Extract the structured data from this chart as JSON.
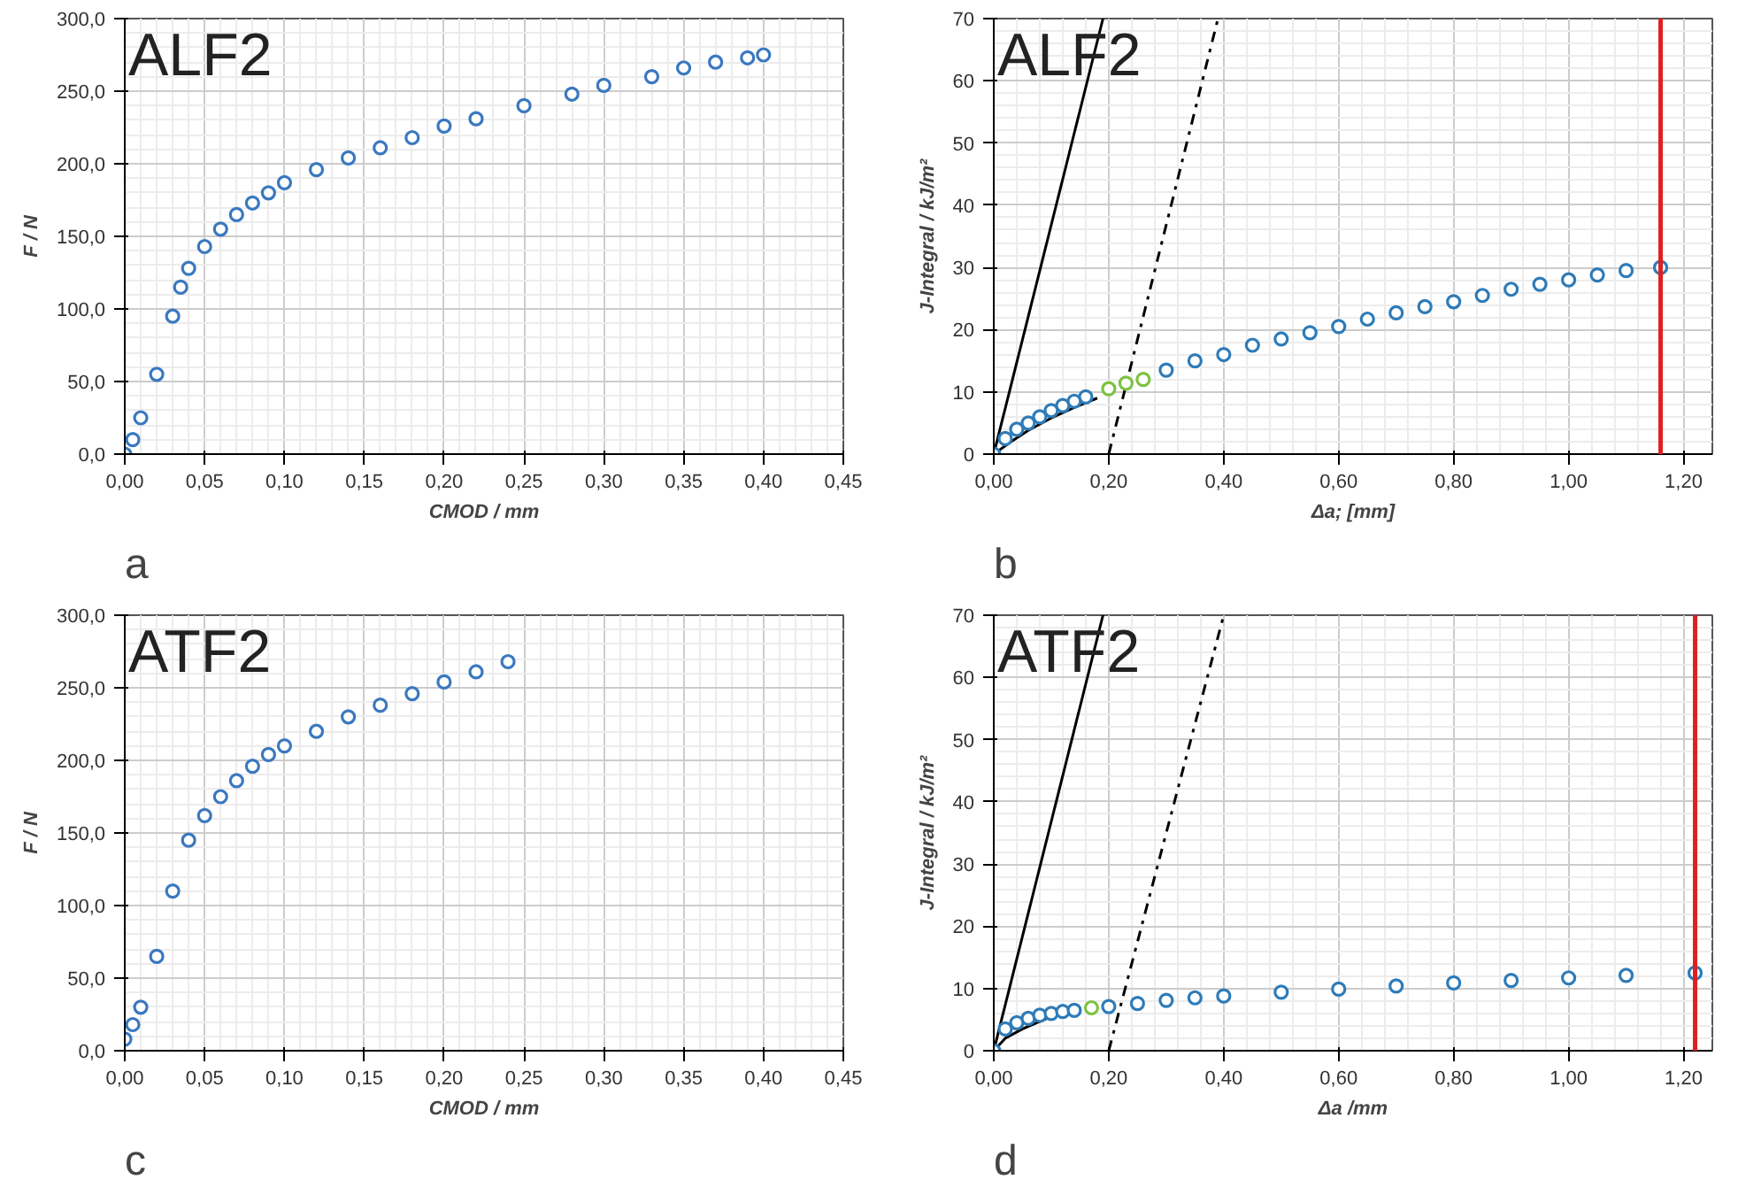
{
  "chart_data": [
    {
      "type": "scatter",
      "title": "ALF2",
      "xlabel": "CMOD / mm",
      "ylabel": "F / N",
      "annotations": [
        "a"
      ],
      "grid": true,
      "marker": "circle",
      "xlim": [
        0,
        0.45
      ],
      "ylim": [
        0,
        300
      ],
      "xticks": [
        {
          "value": 0,
          "label": "0,00"
        },
        {
          "value": 0.05,
          "label": "0,05"
        },
        {
          "value": 0.1,
          "label": "0,10"
        },
        {
          "value": 0.15,
          "label": "0,15"
        },
        {
          "value": 0.2,
          "label": "0,20"
        },
        {
          "value": 0.25,
          "label": "0,25"
        },
        {
          "value": 0.3,
          "label": "0,30"
        },
        {
          "value": 0.35,
          "label": "0,35"
        },
        {
          "value": 0.4,
          "label": "0,40"
        },
        {
          "value": 0.45,
          "label": "0,45"
        }
      ],
      "yticks": [
        {
          "value": 0,
          "label": "0,0"
        },
        {
          "value": 50,
          "label": "50,0"
        },
        {
          "value": 100,
          "label": "100,0"
        },
        {
          "value": 150,
          "label": "150,0"
        },
        {
          "value": 200,
          "label": "200,0"
        },
        {
          "value": 250,
          "label": "250,0"
        },
        {
          "value": 300,
          "label": "300,0"
        }
      ],
      "series": [
        {
          "color": "#3a78c0",
          "x": [
            0,
            0.005,
            0.01,
            0.02,
            0.03,
            0.035,
            0.04,
            0.05,
            0.06,
            0.07,
            0.08,
            0.09,
            0.1,
            0.12,
            0.14,
            0.16,
            0.18,
            0.2,
            0.22,
            0.25,
            0.28,
            0.3,
            0.33,
            0.35,
            0.37,
            0.39,
            0.4
          ],
          "values": [
            0,
            10,
            25,
            55,
            95,
            115,
            128,
            143,
            155,
            165,
            173,
            180,
            187,
            196,
            204,
            211,
            218,
            226,
            231,
            240,
            248,
            254,
            260,
            266,
            270,
            273,
            275
          ]
        }
      ]
    },
    {
      "type": "scatter",
      "title": "ALF2",
      "xlabel": "Δa; [mm]",
      "ylabel": "J-Integral / kJ/m²",
      "annotations": [
        "b"
      ],
      "grid": true,
      "marker": "circle",
      "xlim": [
        0,
        1.25
      ],
      "ylim": [
        0,
        70
      ],
      "xticks": [
        {
          "value": 0,
          "label": "0,00"
        },
        {
          "value": 0.2,
          "label": "0,20"
        },
        {
          "value": 0.4,
          "label": "0,40"
        },
        {
          "value": 0.6,
          "label": "0,60"
        },
        {
          "value": 0.8,
          "label": "0,80"
        },
        {
          "value": 1.0,
          "label": "1,00"
        },
        {
          "value": 1.2,
          "label": "1,20"
        }
      ],
      "yticks": [
        0,
        10,
        20,
        30,
        40,
        50,
        60,
        70
      ],
      "ref_lines": [
        {
          "axis": "x",
          "value": 1.16,
          "color": "#e02020"
        }
      ],
      "series": [
        {
          "type": "line",
          "marker": "none",
          "color": "#000000",
          "line_style": "solid",
          "x": [
            0,
            0.19
          ],
          "values": [
            0,
            70
          ]
        },
        {
          "type": "line",
          "marker": "none",
          "color": "#000000",
          "line_style": "dashdot",
          "x": [
            0.2,
            0.39
          ],
          "values": [
            0,
            70
          ]
        },
        {
          "type": "line",
          "marker": "none",
          "color": "#000000",
          "line_style": "solid",
          "x": [
            0,
            0.03,
            0.06,
            0.1,
            0.14,
            0.18
          ],
          "values": [
            0,
            2,
            3.8,
            5.8,
            7.5,
            9
          ]
        },
        {
          "color": "#2e7bb8",
          "x": [
            0,
            0.02,
            0.04,
            0.06,
            0.08,
            0.1,
            0.12,
            0.14,
            0.16,
            0.3,
            0.35,
            0.4,
            0.45,
            0.5,
            0.55,
            0.6,
            0.65,
            0.7,
            0.75,
            0.8,
            0.85,
            0.9,
            0.95,
            1.0,
            1.05,
            1.1,
            1.16
          ],
          "values": [
            0,
            2.5,
            4,
            5,
            6,
            7,
            7.8,
            8.5,
            9.2,
            13.5,
            15,
            16,
            17.5,
            18.5,
            19.5,
            20.5,
            21.7,
            22.7,
            23.7,
            24.5,
            25.5,
            26.5,
            27.3,
            28,
            28.8,
            29.5,
            30
          ]
        },
        {
          "color": "#7dc242",
          "x": [
            0.2,
            0.23,
            0.26
          ],
          "values": [
            10.5,
            11.4,
            12
          ]
        }
      ]
    },
    {
      "type": "scatter",
      "title": "ATF2",
      "xlabel": "CMOD / mm",
      "ylabel": "F / N",
      "annotations": [
        "c"
      ],
      "grid": true,
      "marker": "circle",
      "xlim": [
        0,
        0.45
      ],
      "ylim": [
        0,
        300
      ],
      "xticks": [
        {
          "value": 0,
          "label": "0,00"
        },
        {
          "value": 0.05,
          "label": "0,05"
        },
        {
          "value": 0.1,
          "label": "0,10"
        },
        {
          "value": 0.15,
          "label": "0,15"
        },
        {
          "value": 0.2,
          "label": "0,20"
        },
        {
          "value": 0.25,
          "label": "0,25"
        },
        {
          "value": 0.3,
          "label": "0,30"
        },
        {
          "value": 0.35,
          "label": "0,35"
        },
        {
          "value": 0.4,
          "label": "0,40"
        },
        {
          "value": 0.45,
          "label": "0,45"
        }
      ],
      "yticks": [
        {
          "value": 0,
          "label": "0,0"
        },
        {
          "value": 50,
          "label": "50,0"
        },
        {
          "value": 100,
          "label": "100,0"
        },
        {
          "value": 150,
          "label": "150,0"
        },
        {
          "value": 200,
          "label": "200,0"
        },
        {
          "value": 250,
          "label": "250,0"
        },
        {
          "value": 300,
          "label": "300,0"
        }
      ],
      "series": [
        {
          "color": "#3a78c0",
          "x": [
            0,
            0.005,
            0.01,
            0.02,
            0.03,
            0.04,
            0.05,
            0.06,
            0.07,
            0.08,
            0.09,
            0.1,
            0.12,
            0.14,
            0.16,
            0.18,
            0.2,
            0.22,
            0.24
          ],
          "values": [
            8,
            18,
            30,
            65,
            110,
            145,
            162,
            175,
            186,
            196,
            204,
            210,
            220,
            230,
            238,
            246,
            254,
            261,
            268
          ]
        }
      ]
    },
    {
      "type": "scatter",
      "title": "ATF2",
      "xlabel": "Δa /mm",
      "ylabel": "J-Integral / kJ/m²",
      "annotations": [
        "d"
      ],
      "grid": true,
      "marker": "circle",
      "xlim": [
        0,
        1.25
      ],
      "ylim": [
        0,
        70
      ],
      "xticks": [
        {
          "value": 0,
          "label": "0,00"
        },
        {
          "value": 0.2,
          "label": "0,20"
        },
        {
          "value": 0.4,
          "label": "0,40"
        },
        {
          "value": 0.6,
          "label": "0,60"
        },
        {
          "value": 0.8,
          "label": "0,80"
        },
        {
          "value": 1.0,
          "label": "1,00"
        },
        {
          "value": 1.2,
          "label": "1,20"
        }
      ],
      "yticks": [
        0,
        10,
        20,
        30,
        40,
        50,
        60,
        70
      ],
      "ref_lines": [
        {
          "axis": "x",
          "value": 1.22,
          "color": "#e02020"
        }
      ],
      "series": [
        {
          "type": "line",
          "marker": "none",
          "color": "#000000",
          "line_style": "solid",
          "x": [
            0,
            0.19
          ],
          "values": [
            0,
            70
          ]
        },
        {
          "type": "line",
          "marker": "none",
          "color": "#000000",
          "line_style": "dashdot",
          "x": [
            0.2,
            0.4
          ],
          "values": [
            0,
            70
          ]
        },
        {
          "type": "line",
          "marker": "none",
          "color": "#000000",
          "line_style": "solid",
          "x": [
            0,
            0.02,
            0.05,
            0.1,
            0.13
          ],
          "values": [
            0,
            2,
            3.5,
            5.5,
            6.2
          ]
        },
        {
          "color": "#2e7bb8",
          "x": [
            0,
            0.02,
            0.04,
            0.06,
            0.08,
            0.1,
            0.12,
            0.14,
            0.2,
            0.25,
            0.3,
            0.35,
            0.4,
            0.5,
            0.6,
            0.7,
            0.8,
            0.9,
            1.0,
            1.1,
            1.22
          ],
          "values": [
            0,
            3.5,
            4.5,
            5.2,
            5.7,
            6,
            6.3,
            6.5,
            7.1,
            7.6,
            8.1,
            8.5,
            8.8,
            9.4,
            9.9,
            10.4,
            10.9,
            11.3,
            11.7,
            12.1,
            12.5
          ]
        },
        {
          "color": "#7dc242",
          "x": [
            0.17
          ],
          "values": [
            6.9
          ]
        }
      ]
    }
  ]
}
